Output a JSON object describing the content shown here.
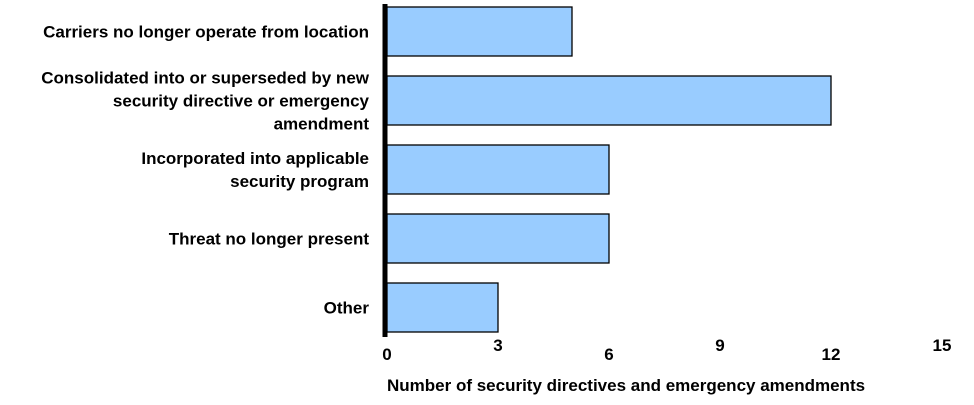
{
  "chart_data": {
    "type": "bar",
    "orientation": "horizontal",
    "categories": [
      [
        "Carriers no longer operate from location"
      ],
      [
        "Consolidated into or superseded by new",
        "security directive or emergency",
        "amendment"
      ],
      [
        "Incorporated into applicable",
        "security program"
      ],
      [
        "Threat no longer present"
      ],
      [
        "Other"
      ]
    ],
    "values": [
      5,
      12,
      6,
      6,
      3
    ],
    "xlabel": "Number of security directives and emergency amendments",
    "xlim": [
      0,
      15
    ],
    "xticks": [
      0,
      3,
      6,
      9,
      12,
      15
    ],
    "grid": false,
    "legend": "none",
    "bar_color": "#99ccff",
    "bar_edge_color": "#000000",
    "axis_color": "#000000"
  }
}
